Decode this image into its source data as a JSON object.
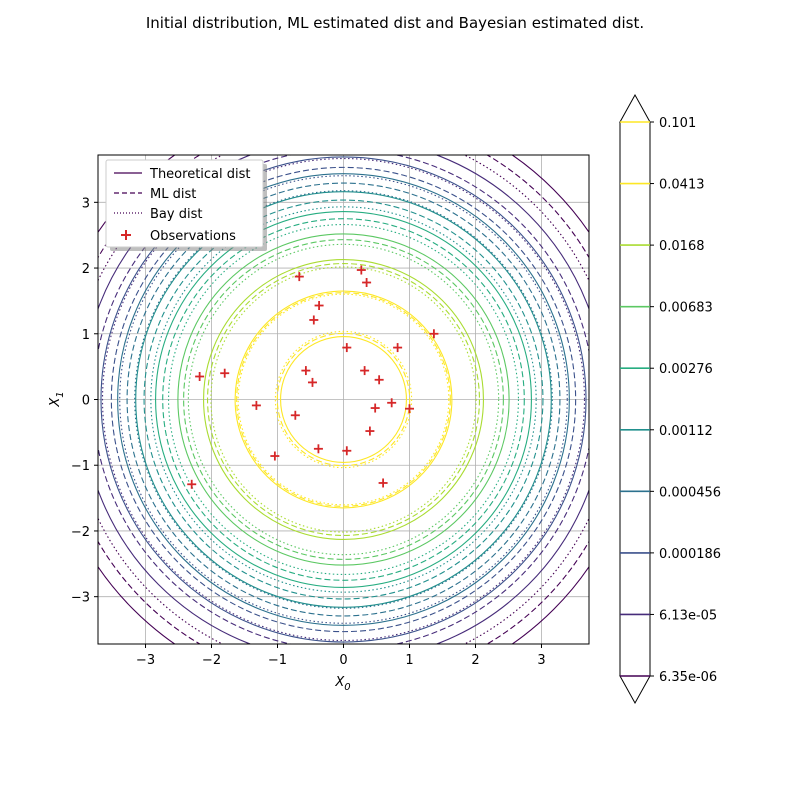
{
  "chart_data": {
    "type": "contour",
    "title": "Initial distribution, ML estimated dist and Bayesian estimated dist.",
    "xlabel": "X_0",
    "ylabel": "X_1",
    "xlim": [
      -3.72,
      3.72
    ],
    "ylim": [
      -3.72,
      3.72
    ],
    "xticks": [
      -3,
      -2,
      -1,
      0,
      1,
      2,
      3
    ],
    "yticks": [
      -3,
      -2,
      -1,
      0,
      1,
      2,
      3
    ],
    "grid": true,
    "legend_position": "upper-left",
    "legend": [
      {
        "label": "Theoretical dist",
        "style": "solid"
      },
      {
        "label": "ML dist",
        "style": "dashed"
      },
      {
        "label": "Bay dist",
        "style": "dotted"
      },
      {
        "label": "Observations",
        "style": "marker"
      }
    ],
    "levels": [
      6.35e-06,
      6.13e-05,
      0.000186,
      0.000456,
      0.00112,
      0.00276,
      0.00683,
      0.0168,
      0.0413,
      0.101
    ],
    "colorbar_labels": [
      "0.101",
      "0.0413",
      "0.0168",
      "0.00683",
      "0.00276",
      "0.00112",
      "0.000456",
      "0.000186",
      "6.13e-05",
      "6.35e-06"
    ],
    "level_colors": [
      "#440154",
      "#472c7a",
      "#3b518b",
      "#2c718e",
      "#21908d",
      "#27ad81",
      "#5cc863",
      "#aadc32",
      "#fde725",
      "#fde725"
    ],
    "series": [
      {
        "name": "Theoretical dist",
        "style": "solid",
        "sigma": 1.0
      },
      {
        "name": "ML dist",
        "style": "dashed",
        "sigma": 0.95
      },
      {
        "name": "Bay dist",
        "style": "dotted",
        "sigma": 0.91
      }
    ],
    "observations": [
      [
        0.27,
        1.97
      ],
      [
        0.35,
        1.78
      ],
      [
        -0.67,
        1.87
      ],
      [
        -0.37,
        1.43
      ],
      [
        -0.45,
        1.21
      ],
      [
        1.37,
        1.0
      ],
      [
        0.82,
        0.79
      ],
      [
        0.05,
        0.79
      ],
      [
        -2.18,
        0.35
      ],
      [
        -1.8,
        0.4
      ],
      [
        -0.57,
        0.44
      ],
      [
        0.32,
        0.44
      ],
      [
        -0.47,
        0.26
      ],
      [
        0.54,
        0.3
      ],
      [
        -1.32,
        -0.09
      ],
      [
        0.48,
        -0.13
      ],
      [
        0.73,
        -0.05
      ],
      [
        1.0,
        -0.14
      ],
      [
        -0.73,
        -0.24
      ],
      [
        0.4,
        -0.48
      ],
      [
        -0.38,
        -0.75
      ],
      [
        0.05,
        -0.78
      ],
      [
        -1.04,
        -0.86
      ],
      [
        0.6,
        -1.27
      ],
      [
        -2.3,
        -1.29
      ]
    ]
  }
}
